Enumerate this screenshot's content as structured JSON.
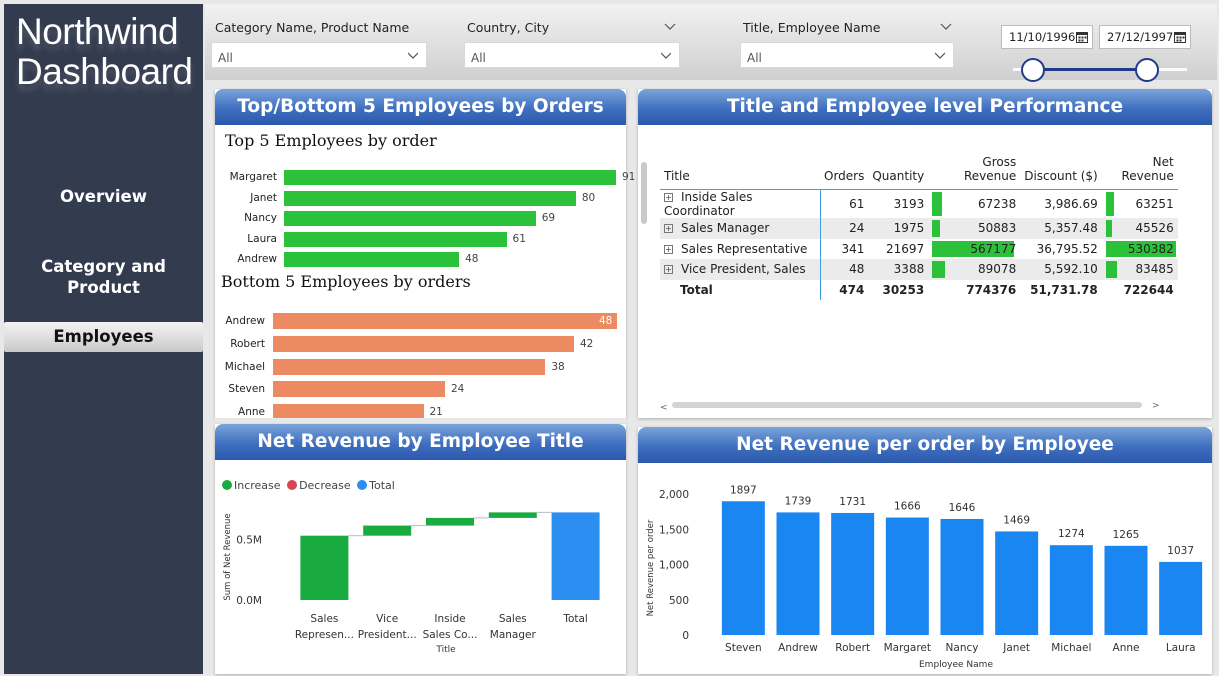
{
  "sidebar": {
    "logo_line1": "Northwind",
    "logo_line2": "Dashboard",
    "nav": [
      {
        "label": "Overview"
      },
      {
        "label": "Category and Product"
      },
      {
        "label": "Employees"
      }
    ]
  },
  "filters": {
    "category": {
      "label": "Category Name, Product Name",
      "value": "All"
    },
    "country": {
      "label": "Country, City",
      "value": "All"
    },
    "title": {
      "label": "Title, Employee Name",
      "value": "All"
    },
    "date_start": "11/10/1996",
    "date_end": "27/12/1997",
    "range_start_fraction": 0,
    "range_end_fraction": 1
  },
  "top_bottom": {
    "header": "Top/Bottom 5 Employees by Orders",
    "top_title": "Top 5 Employees by order",
    "bottom_title": "Bottom 5 Employees by orders",
    "top": [
      {
        "name": "Margaret",
        "value": 91
      },
      {
        "name": "Janet",
        "value": 80
      },
      {
        "name": "Nancy",
        "value": 69
      },
      {
        "name": "Laura",
        "value": 61
      },
      {
        "name": "Andrew",
        "value": 48
      }
    ],
    "bottom": [
      {
        "name": "Andrew",
        "value": 48
      },
      {
        "name": "Robert",
        "value": 42
      },
      {
        "name": "Michael",
        "value": 38
      },
      {
        "name": "Steven",
        "value": 24
      },
      {
        "name": "Anne",
        "value": 21
      }
    ],
    "top_color": "#2cc13b",
    "bottom_color": "#ec8a62"
  },
  "performance": {
    "header": "Title and Employee level Performance",
    "columns": [
      "Title",
      "Orders",
      "Quantity",
      "Gross Revenue",
      "Discount ($)",
      "Net Revenue"
    ],
    "rows": [
      {
        "title": "Inside Sales Coordinator",
        "orders": "61",
        "quantity": "3193",
        "gross": "67238",
        "discount": "3,986.69",
        "net": "63251",
        "gross_num": 67238,
        "net_num": 63251
      },
      {
        "title": "Sales Manager",
        "orders": "24",
        "quantity": "1975",
        "gross": "50883",
        "discount": "5,357.48",
        "net": "45526",
        "gross_num": 50883,
        "net_num": 45526
      },
      {
        "title": "Sales Representative",
        "orders": "341",
        "quantity": "21697",
        "gross": "567177",
        "discount": "36,795.52",
        "net": "530382",
        "gross_num": 567177,
        "net_num": 530382
      },
      {
        "title": "Vice President, Sales",
        "orders": "48",
        "quantity": "3388",
        "gross": "89078",
        "discount": "5,592.10",
        "net": "83485",
        "gross_num": 89078,
        "net_num": 83485
      }
    ],
    "total": {
      "title": "Total",
      "orders": "474",
      "quantity": "30253",
      "gross": "774376",
      "discount": "51,731.78",
      "net": "722644"
    }
  },
  "waterfall": {
    "header": "Net Revenue by Employee Title",
    "legend": [
      {
        "label": "Increase",
        "color": "#1aab40"
      },
      {
        "label": "Decrease",
        "color": "#d64550"
      },
      {
        "label": "Total",
        "color": "#2b8ef0"
      }
    ],
    "ylabel": "Sum of Net Revenue",
    "xlabel": "Title",
    "yticks": [
      "0.0M",
      "0.5M"
    ]
  },
  "per_order": {
    "header": "Net Revenue per order by Employee",
    "ylabel": "Net Revenue per order",
    "xlabel": "Employee Name",
    "yticks": [
      "0",
      "500",
      "1,000",
      "1,500",
      "2,000"
    ]
  },
  "chart_data": [
    {
      "type": "bar",
      "title": "Top 5 Employees by order",
      "categories": [
        "Margaret",
        "Janet",
        "Nancy",
        "Laura",
        "Andrew"
      ],
      "values": [
        91,
        80,
        69,
        61,
        48
      ]
    },
    {
      "type": "bar",
      "title": "Bottom 5 Employees by orders",
      "categories": [
        "Andrew",
        "Robert",
        "Michael",
        "Steven",
        "Anne"
      ],
      "values": [
        48,
        42,
        38,
        24,
        21
      ]
    },
    {
      "type": "bar",
      "subtype": "waterfall",
      "title": "Net Revenue by Employee Title",
      "categories": [
        "Sales Represen...",
        "Vice President...",
        "Inside Sales Co...",
        "Sales Manager",
        "Total"
      ],
      "values": [
        530382,
        83485,
        63251,
        45526,
        722644
      ],
      "xlabel": "Title",
      "ylabel": "Sum of Net Revenue",
      "legend": [
        "Increase",
        "Decrease",
        "Total"
      ],
      "ylim": [
        0,
        800000
      ]
    },
    {
      "type": "bar",
      "title": "Net Revenue per order by Employee",
      "categories": [
        "Steven",
        "Andrew",
        "Robert",
        "Margaret",
        "Nancy",
        "Janet",
        "Michael",
        "Anne",
        "Laura"
      ],
      "values": [
        1897,
        1739,
        1731,
        1666,
        1646,
        1469,
        1274,
        1265,
        1037
      ],
      "xlabel": "Employee Name",
      "ylabel": "Net Revenue per order",
      "ylim": [
        0,
        2000
      ],
      "color": "#1a86f2"
    }
  ]
}
